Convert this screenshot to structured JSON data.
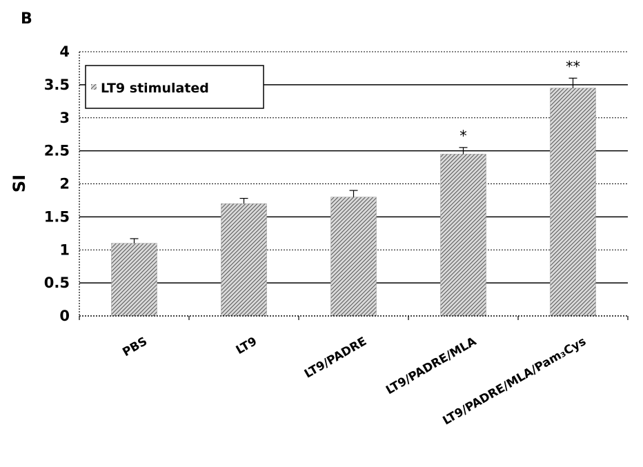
{
  "panel_label": "B",
  "chart_data": {
    "type": "bar",
    "categories": [
      "PBS",
      "LT9",
      "LT9/PADRE",
      "LT9/PADRE/MLA",
      "LT9/PADRE/MLA/Pam₃Cys"
    ],
    "series": [
      {
        "name": "LT9 stimulated",
        "values": [
          1.1,
          1.7,
          1.8,
          2.45,
          3.45
        ],
        "errors": [
          0.07,
          0.08,
          0.1,
          0.1,
          0.15
        ],
        "color": "#9a9a9a",
        "pattern": "diagonal-hatch"
      }
    ],
    "significance": [
      "",
      "",
      "",
      "*",
      "**"
    ],
    "ylabel": "SI",
    "xlabel": "",
    "ylim": [
      0,
      4
    ],
    "yticks": [
      0,
      0.5,
      1,
      1.5,
      2,
      2.5,
      3,
      3.5,
      4
    ],
    "ytick_labels": [
      "0",
      "0.5",
      "1",
      "1.5",
      "2",
      "2.5",
      "3",
      "3.5",
      "4"
    ],
    "grid": true,
    "legend_position": "top-left"
  }
}
